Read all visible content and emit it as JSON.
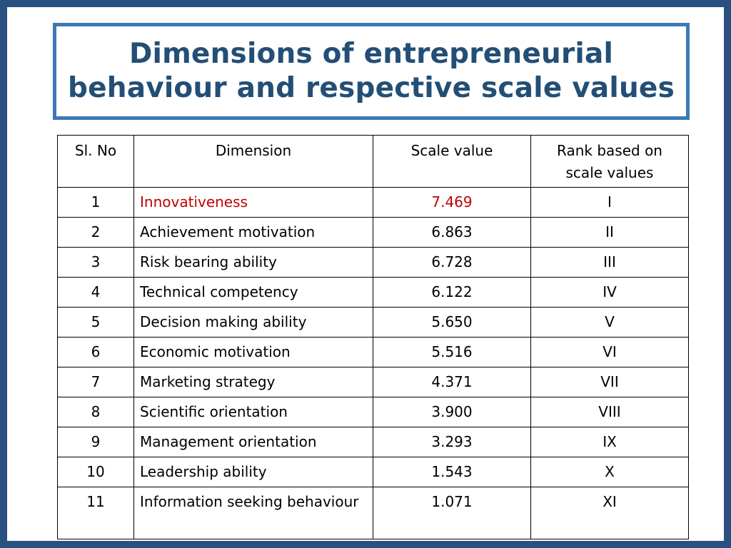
{
  "slide": {
    "title_line1": "Dimensions of entrepreneurial",
    "title_line2": "behaviour and respective scale values"
  },
  "table": {
    "headers": {
      "sl": "Sl. No",
      "dimension": "Dimension",
      "scale_value": "Scale value",
      "rank": "Rank based on scale values"
    },
    "highlight_color": "#c00000",
    "rows": [
      {
        "sl": "1",
        "dimension": "Innovativeness",
        "scale_value": "7.469",
        "rank": "I"
      },
      {
        "sl": "2",
        "dimension": "Achievement motivation",
        "scale_value": "6.863",
        "rank": "II"
      },
      {
        "sl": "3",
        "dimension": "Risk bearing ability",
        "scale_value": "6.728",
        "rank": "III"
      },
      {
        "sl": "4",
        "dimension": "Technical competency",
        "scale_value": "6.122",
        "rank": "IV"
      },
      {
        "sl": "5",
        "dimension": "Decision making ability",
        "scale_value": "5.650",
        "rank": "V"
      },
      {
        "sl": "6",
        "dimension": "Economic motivation",
        "scale_value": "5.516",
        "rank": "VI"
      },
      {
        "sl": "7",
        "dimension": "Marketing strategy",
        "scale_value": "4.371",
        "rank": "VII"
      },
      {
        "sl": "8",
        "dimension": "Scientific orientation",
        "scale_value": "3.900",
        "rank": "VIII"
      },
      {
        "sl": "9",
        "dimension": "Management orientation",
        "scale_value": "3.293",
        "rank": "IX"
      },
      {
        "sl": "10",
        "dimension": "Leadership ability",
        "scale_value": "1.543",
        "rank": "X"
      },
      {
        "sl": "11",
        "dimension": "Information seeking behaviour",
        "scale_value": "1.071",
        "rank": "XI"
      }
    ]
  }
}
